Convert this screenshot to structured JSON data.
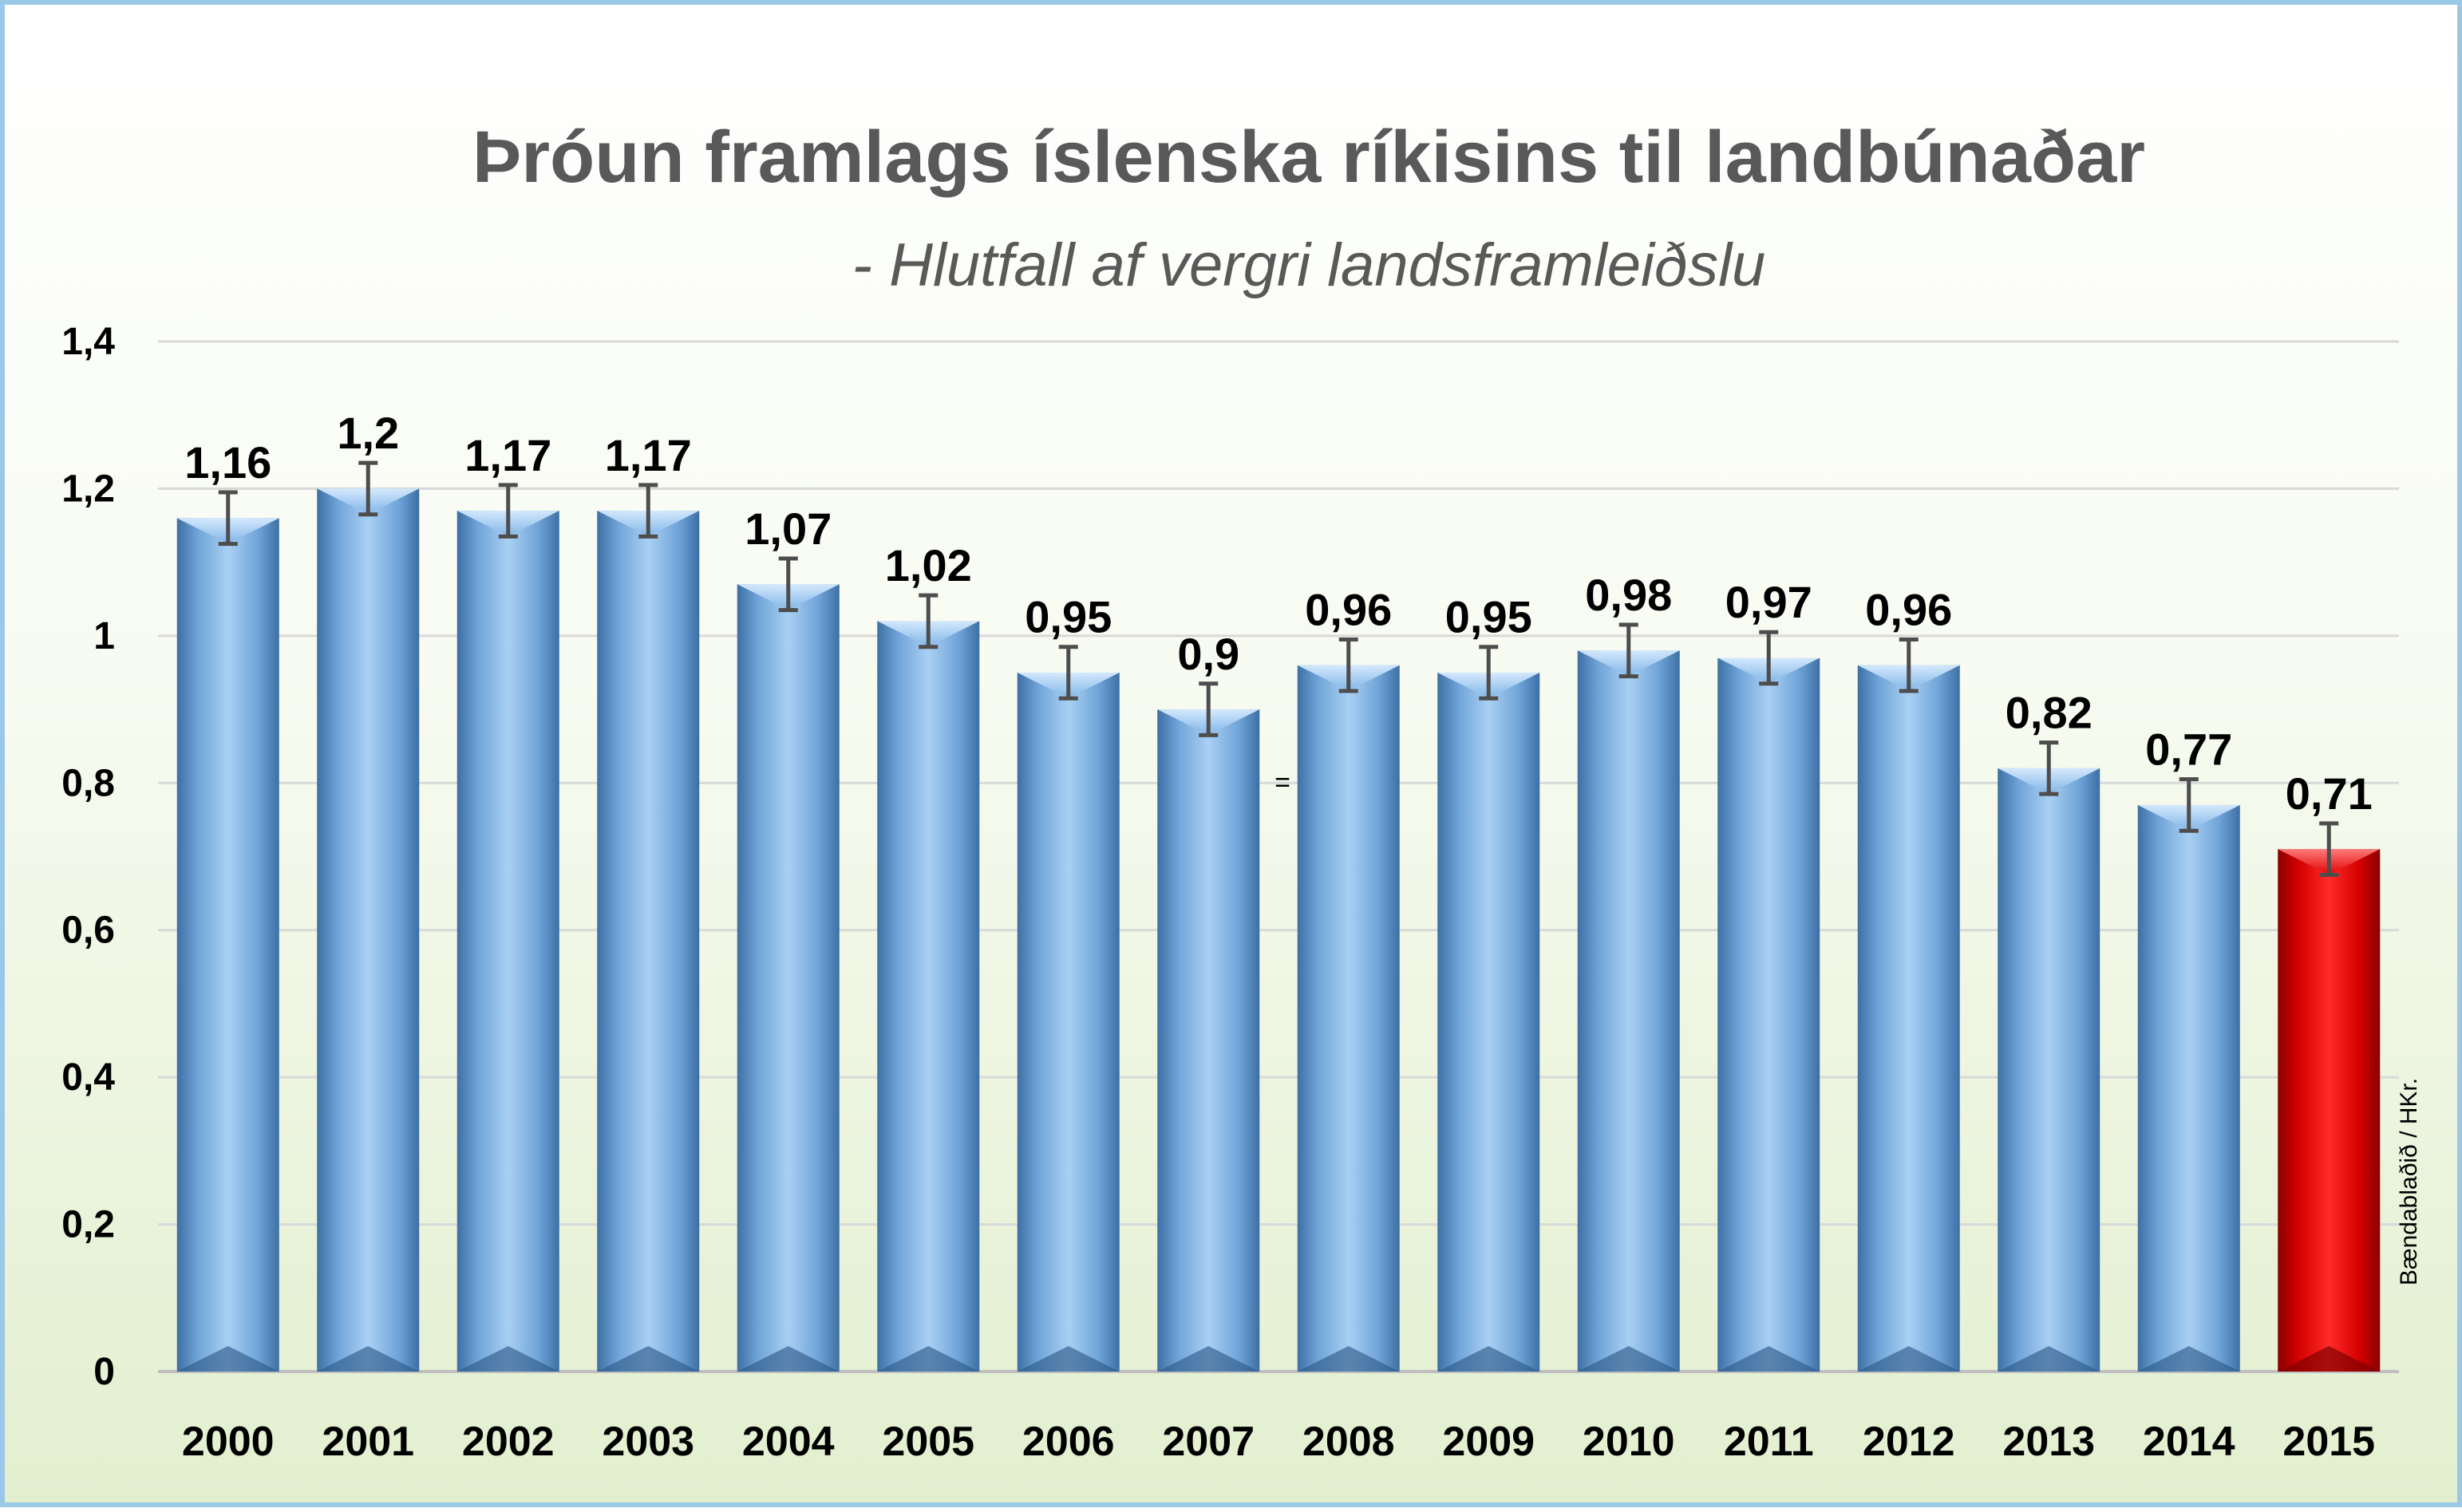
{
  "chart_data": {
    "type": "bar",
    "title": "Þróun framlags íslenska ríkisins til landbúnaðar",
    "subtitle": "- Hlutfall af vergri landsframleiðslu",
    "categories": [
      "2000",
      "2001",
      "2002",
      "2003",
      "2004",
      "2005",
      "2006",
      "2007",
      "2008",
      "2009",
      "2010",
      "2011",
      "2012",
      "2013",
      "2014",
      "2015"
    ],
    "values": [
      1.16,
      1.2,
      1.17,
      1.17,
      1.07,
      1.02,
      0.95,
      0.9,
      0.96,
      0.95,
      0.98,
      0.97,
      0.96,
      0.82,
      0.77,
      0.71
    ],
    "value_labels": [
      "1,16",
      "1,2",
      "1,17",
      "1,17",
      "1,07",
      "1,02",
      "0,95",
      "0,9",
      "0,96",
      "0,95",
      "0,98",
      "0,97",
      "0,96",
      "0,82",
      "0,77",
      "0,71"
    ],
    "error_margin": 0.035,
    "ylim": [
      0,
      1.4
    ],
    "yticks": [
      0,
      0.2,
      0.4,
      0.6,
      0.8,
      1,
      1.2,
      1.4
    ],
    "ytick_labels": [
      "0",
      "0,2",
      "0,4",
      "0,6",
      "0,8",
      "1",
      "1,2",
      "1,4"
    ],
    "highlight_category": "2015",
    "grid": true,
    "xlabel": "",
    "ylabel": "",
    "bar_color": "#6fa8dc",
    "highlight_color": "#e00000",
    "credit": "Bændablaðið / HKr.",
    "stray_mark": "="
  }
}
